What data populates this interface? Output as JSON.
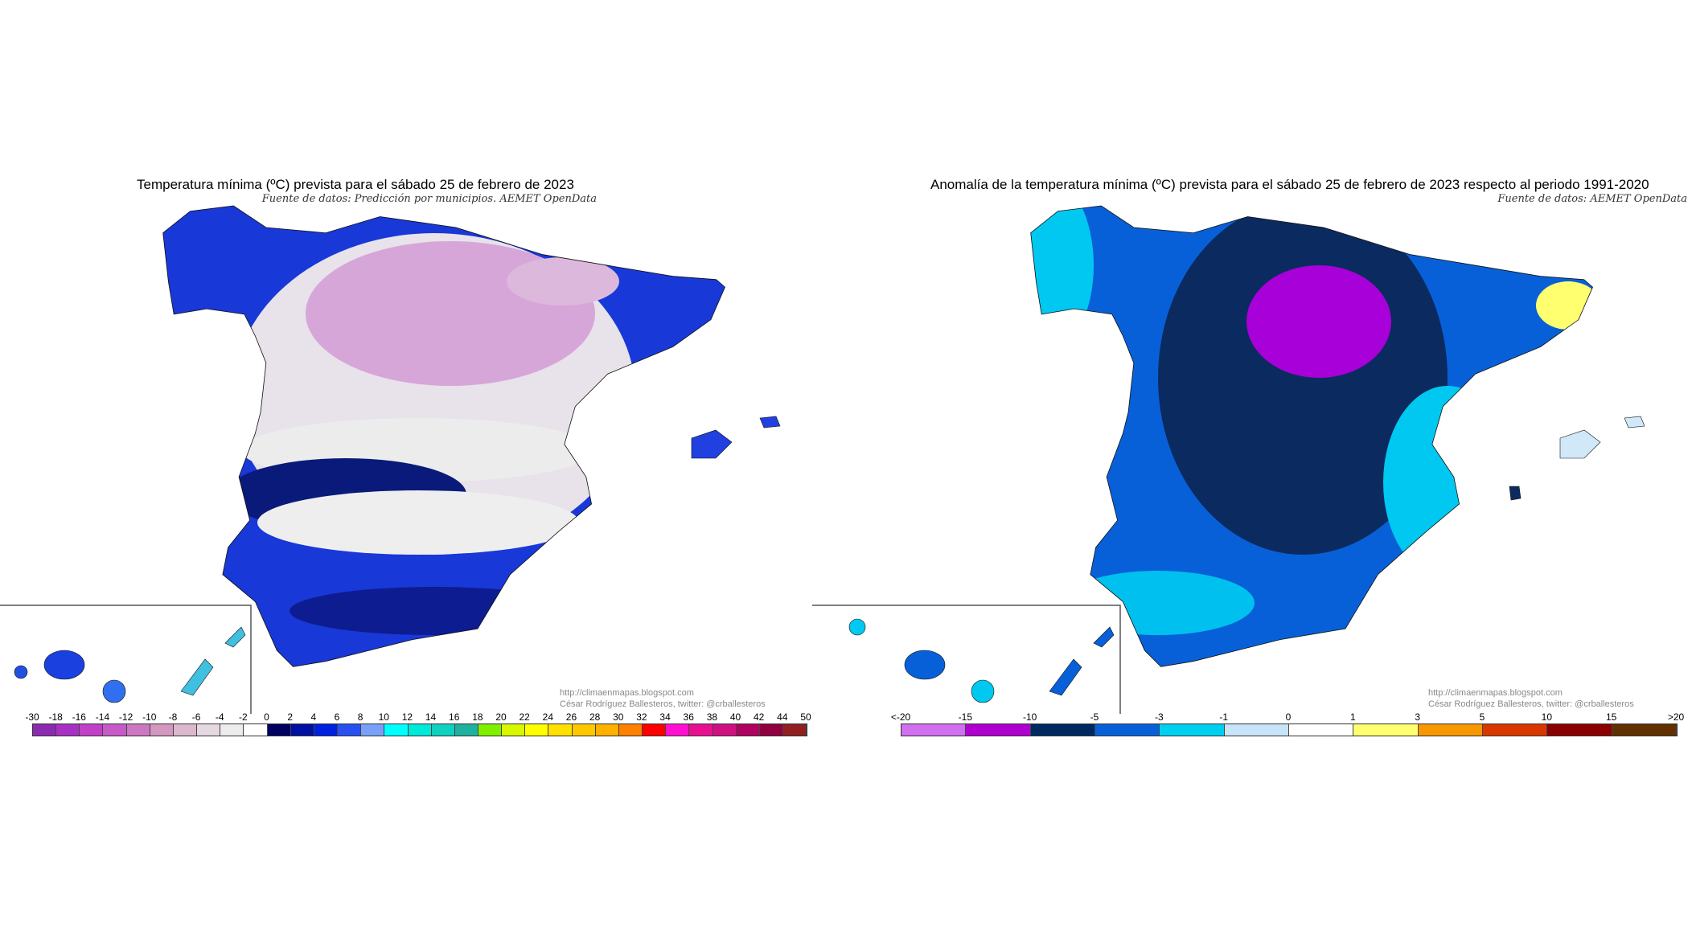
{
  "left_map": {
    "title": "Temperatura mínima (ºC) prevista para el sábado 25 de febrero de 2023",
    "source": "Fuente de datos: Predicción por municipios. AEMET OpenData",
    "credit_url": "http://climaenmapas.blogspot.com",
    "credit_author": "César Rodríguez Ballesteros, twitter: @crballesteros",
    "legend_labels": [
      "-30",
      "-18",
      "-16",
      "-14",
      "-12",
      "-10",
      "-8",
      "-6",
      "-4",
      "-2",
      "0",
      "2",
      "4",
      "6",
      "8",
      "10",
      "12",
      "14",
      "16",
      "18",
      "20",
      "22",
      "24",
      "26",
      "28",
      "30",
      "32",
      "34",
      "36",
      "38",
      "40",
      "42",
      "44",
      "50"
    ],
    "legend_colors": [
      "#8a2bb0",
      "#a82fc4",
      "#c040c8",
      "#c85ac8",
      "#cc78c0",
      "#d498c0",
      "#dcb8cc",
      "#e6d8e0",
      "#ececec",
      "#ffffff",
      "#000060",
      "#0010a0",
      "#0020e0",
      "#2850f0",
      "#78a0f8",
      "#00ffff",
      "#00e8d8",
      "#10d0c0",
      "#20b0a0",
      "#80f000",
      "#d8f800",
      "#ffff00",
      "#ffe000",
      "#ffc800",
      "#ffb000",
      "#ff8000",
      "#ff0000",
      "#ff10d0",
      "#e81090",
      "#d01080",
      "#b00060",
      "#900040",
      "#902020"
    ]
  },
  "right_map": {
    "title": "Anomalía de la temperatura mínima (ºC) prevista para el sábado 25 de febrero de 2023 respecto al periodo 1991-2020",
    "source": "Fuente de datos: AEMET OpenData",
    "credit_url": "http://climaenmapas.blogspot.com",
    "credit_author": "César Rodríguez Ballesteros, twitter: @crballesteros",
    "legend_labels": [
      "<-20",
      "-15",
      "-10",
      "-5",
      "-3",
      "-1",
      "0",
      "1",
      "3",
      "5",
      "10",
      "15",
      ">20"
    ],
    "legend_colors": [
      "#d070f0",
      "#b000d0",
      "#002860",
      "#0860d8",
      "#00d0f0",
      "#c8e4f8",
      "#ffffff",
      "#ffff70",
      "#f89800",
      "#d83800",
      "#8a0000",
      "#603000"
    ]
  }
}
